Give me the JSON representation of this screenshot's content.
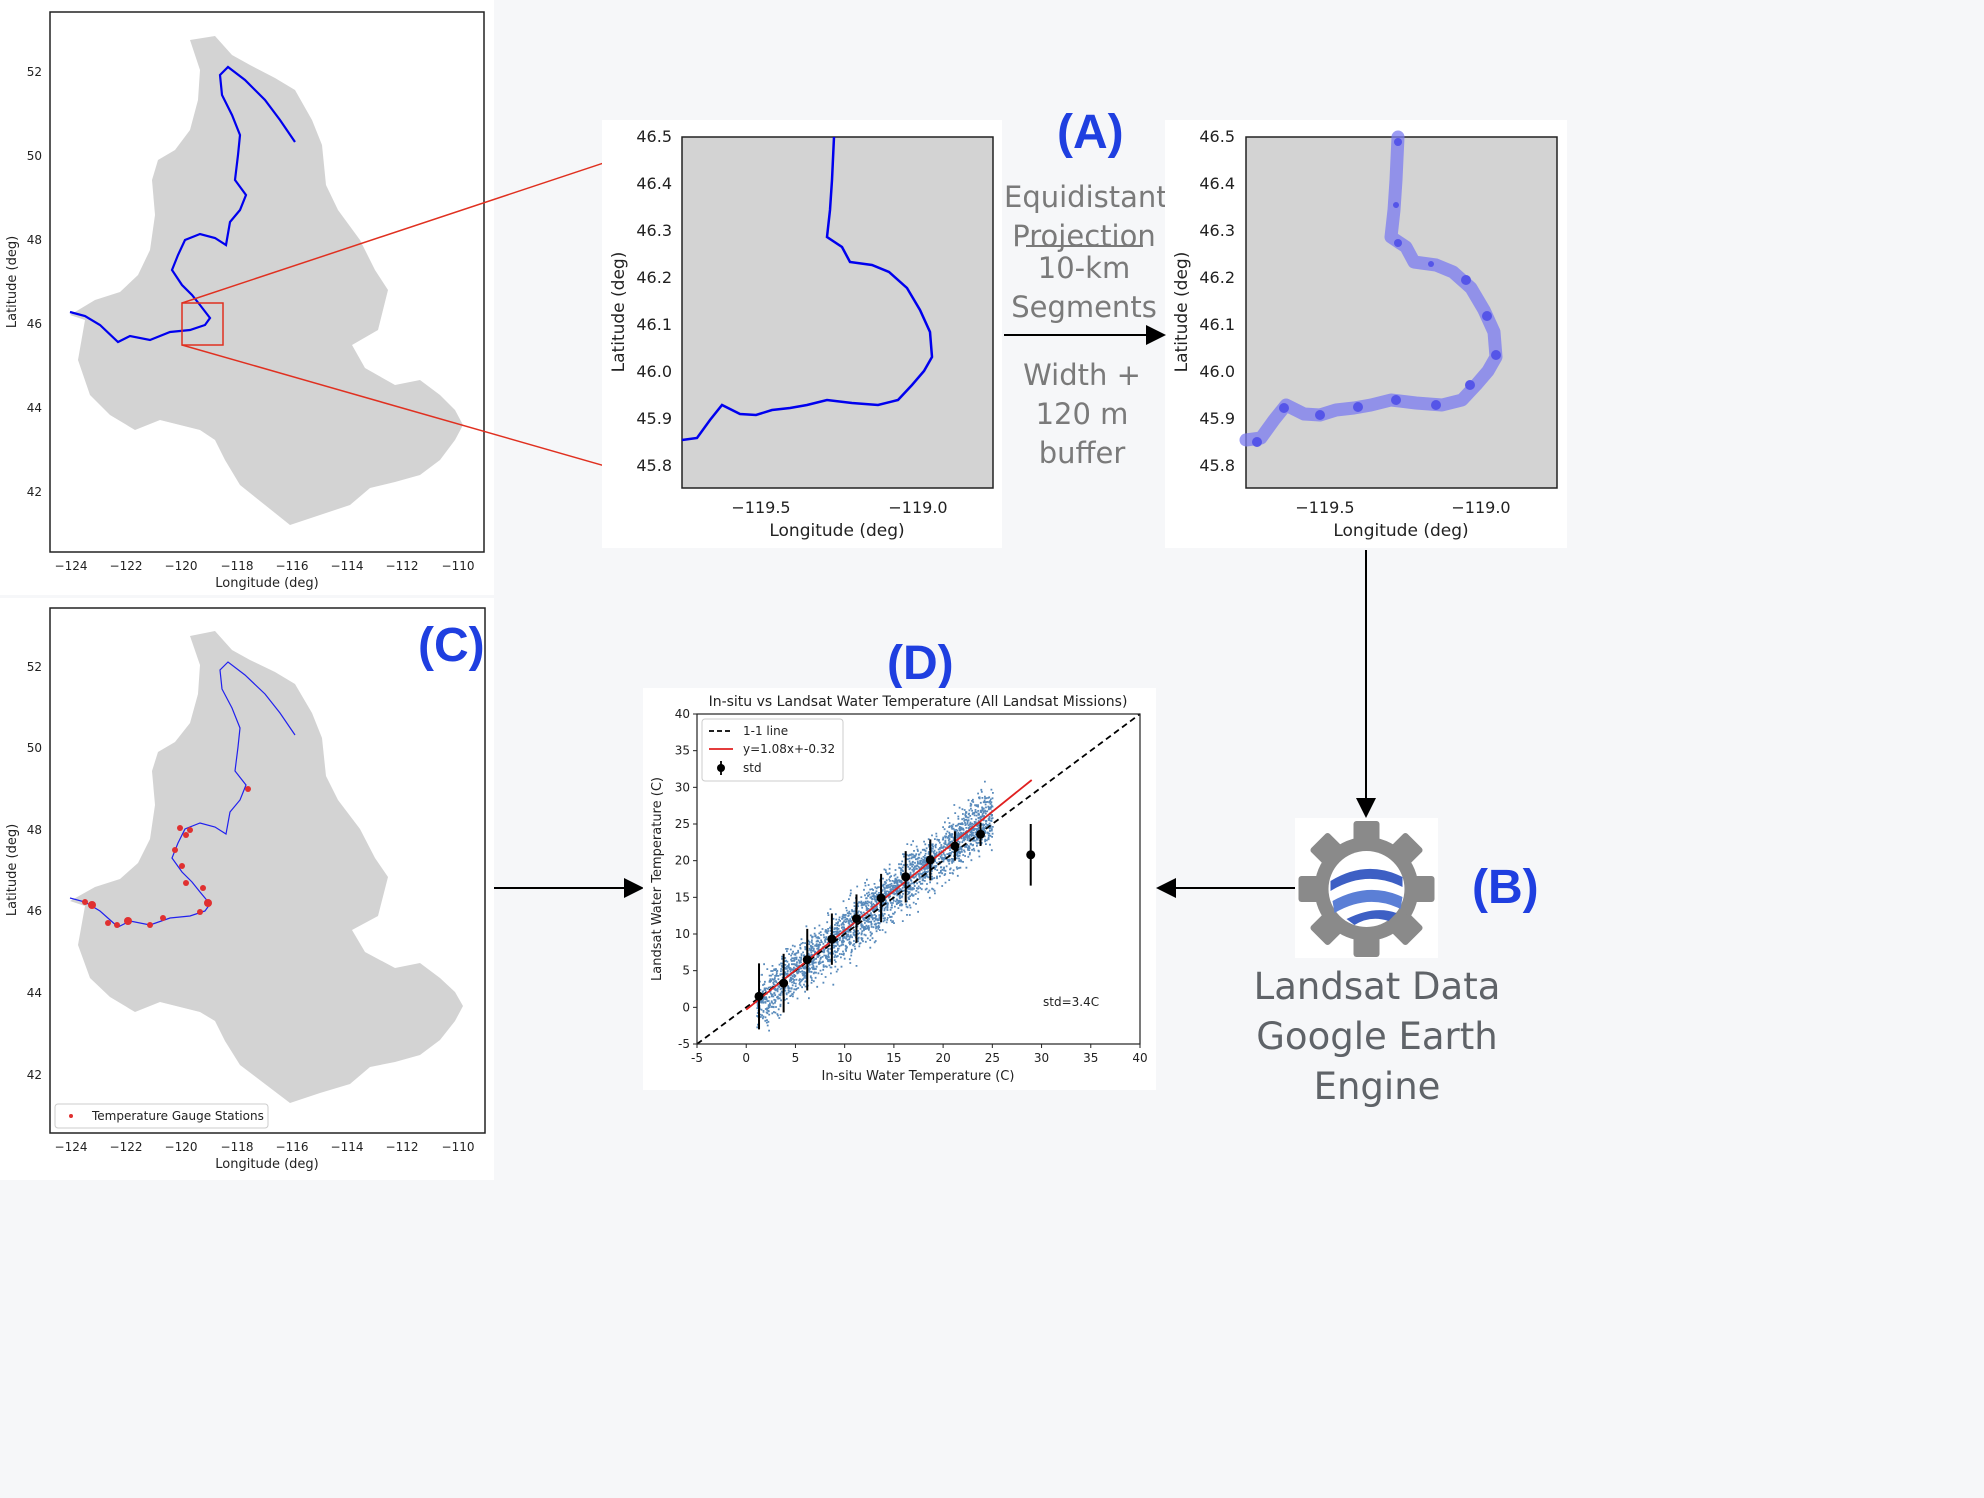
{
  "panels": {
    "a_label": "(A)",
    "b_label": "(B)",
    "c_label": "(C)",
    "d_label": "(D)"
  },
  "map_overview": {
    "xlabel": "Longitude (deg)",
    "ylabel": "Latitude (deg)",
    "xticks": [
      "−124",
      "−122",
      "−120",
      "−118",
      "−116",
      "−114",
      "−112",
      "−110"
    ],
    "yticks": [
      "42",
      "44",
      "46",
      "48",
      "50",
      "52"
    ],
    "basin_color": "#d3d3d3",
    "river_color": "#0000ee",
    "box_color": "#e03020"
  },
  "zoom_raw": {
    "xlabel": "Longitude (deg)",
    "ylabel": "Latitude (deg)",
    "xticks": [
      "−119.5",
      "−119.0"
    ],
    "yticks": [
      "45.8",
      "45.9",
      "46.0",
      "46.1",
      "46.2",
      "46.3",
      "46.4",
      "46.5"
    ]
  },
  "zoom_segments": {
    "xlabel": "Longitude (deg)",
    "ylabel": "Latitude (deg)",
    "xticks": [
      "−119.5",
      "−119.0"
    ],
    "yticks": [
      "45.8",
      "45.9",
      "46.0",
      "46.1",
      "46.2",
      "46.3",
      "46.4",
      "46.5"
    ],
    "buffer_color": "#7b7bf0"
  },
  "step_a": {
    "line1": "Equidistant",
    "line2": "Projection",
    "line3": "10-km",
    "line4": "Segments",
    "line5": "Width + 120 m",
    "line6": "buffer"
  },
  "gee": {
    "line1": "Landsat Data",
    "line2": "Google Earth Engine",
    "icon": "google-earth-engine-icon"
  },
  "gauge_map": {
    "xlabel": "Longitude (deg)",
    "ylabel": "Latitude (deg)",
    "xticks": [
      "−124",
      "−122",
      "−120",
      "−118",
      "−116",
      "−114",
      "−112",
      "−110"
    ],
    "yticks": [
      "42",
      "44",
      "46",
      "48",
      "50",
      "52"
    ],
    "legend": "Temperature Gauge Stations",
    "station_color": "#e03030"
  },
  "chart_data": {
    "type": "scatter",
    "title": "In-situ vs Landsat Water Temperature (All Landsat Missions)",
    "xlabel": "In-situ Water Temperature (C)",
    "ylabel": "Landsat Water Temperature (C)",
    "xlim": [
      -5,
      40
    ],
    "ylim": [
      -5,
      40
    ],
    "xticks": [
      -5,
      0,
      5,
      10,
      15,
      20,
      25,
      30,
      35,
      40
    ],
    "yticks": [
      -5,
      0,
      5,
      10,
      15,
      20,
      25,
      30,
      35,
      40
    ],
    "legend_position": "top-left",
    "legend": [
      "1-1 line",
      "y=1.08x+-0.32",
      "std"
    ],
    "annotation": "std=3.4C",
    "one_to_one": {
      "x": [
        -5,
        40
      ],
      "y": [
        -5,
        40
      ],
      "color": "#000000"
    },
    "fit": {
      "slope": 1.08,
      "intercept": -0.32,
      "x_range": [
        0,
        29
      ],
      "color": "#e02020"
    },
    "scatter_color": "#3b75af",
    "std_points": [
      {
        "x": 1.3,
        "y": 1.5,
        "std": 4.5
      },
      {
        "x": 3.8,
        "y": 3.3,
        "std": 4.0
      },
      {
        "x": 6.2,
        "y": 6.5,
        "std": 4.2
      },
      {
        "x": 8.7,
        "y": 9.3,
        "std": 3.5
      },
      {
        "x": 11.2,
        "y": 12.1,
        "std": 3.3
      },
      {
        "x": 13.7,
        "y": 14.9,
        "std": 3.3
      },
      {
        "x": 16.2,
        "y": 17.8,
        "std": 3.5
      },
      {
        "x": 18.7,
        "y": 20.1,
        "std": 2.8
      },
      {
        "x": 21.2,
        "y": 22.0,
        "std": 2.0
      },
      {
        "x": 23.8,
        "y": 23.6,
        "std": 1.6
      },
      {
        "x": 28.9,
        "y": 20.8,
        "std": 4.2
      }
    ]
  }
}
